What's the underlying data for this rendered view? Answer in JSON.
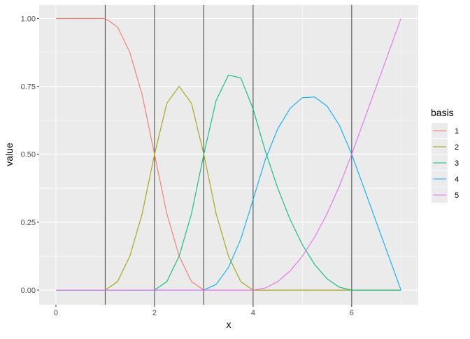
{
  "chart_data": {
    "type": "line",
    "title": "",
    "xlabel": "x",
    "ylabel": "value",
    "xlim": [
      -0.34,
      7.35
    ],
    "ylim": [
      -0.054,
      1.05
    ],
    "x_ticks": [
      0,
      2,
      4,
      6
    ],
    "x_tick_labels": [
      "0",
      "2",
      "4",
      "6"
    ],
    "y_ticks": [
      0,
      0.25,
      0.5,
      0.75,
      1
    ],
    "y_tick_labels": [
      "0.00",
      "0.25",
      "0.50",
      "0.75",
      "1.00"
    ],
    "grid": true,
    "vlines": [
      1,
      2,
      3,
      4,
      6
    ],
    "vline_color": "#4D4D4D",
    "legend": {
      "title": "basis",
      "placement": "right"
    },
    "x": [
      0,
      0.25,
      0.5,
      0.75,
      1,
      1.25,
      1.5,
      1.75,
      2,
      2.25,
      2.5,
      2.75,
      3,
      3.25,
      3.5,
      3.75,
      4,
      4.25,
      4.5,
      4.75,
      5,
      5.25,
      5.5,
      5.75,
      6,
      7
    ],
    "series": [
      {
        "name": "1",
        "color": "#F8766D",
        "values": [
          1,
          1,
          1,
          1,
          1,
          0.96875,
          0.875,
          0.71875,
          0.5,
          0.28125,
          0.125,
          0.03125,
          0,
          0,
          0,
          0,
          0,
          0,
          0,
          0,
          0,
          0,
          0,
          0,
          0,
          0
        ]
      },
      {
        "name": "2",
        "color": "#A3A500",
        "values": [
          0,
          0,
          0,
          0,
          0,
          0.03125,
          0.125,
          0.28125,
          0.5,
          0.6875,
          0.75,
          0.6875,
          0.5,
          0.28125,
          0.125,
          0.03125,
          0,
          0,
          0,
          0,
          0,
          0,
          0,
          0,
          0,
          0
        ]
      },
      {
        "name": "3",
        "color": "#00BF7D",
        "values": [
          0,
          0,
          0,
          0,
          0,
          0,
          0,
          0,
          0,
          0.03125,
          0.125,
          0.28125,
          0.5,
          0.69792,
          0.79167,
          0.78125,
          0.66667,
          0.51042,
          0.375,
          0.26042,
          0.16667,
          0.09375,
          0.04167,
          0.01042,
          0,
          0
        ]
      },
      {
        "name": "4",
        "color": "#00B0F6",
        "values": [
          0,
          0,
          0,
          0,
          0,
          0,
          0,
          0,
          0,
          0,
          0,
          0,
          0,
          0.02083,
          0.08333,
          0.1875,
          0.33333,
          0.48177,
          0.59375,
          0.66927,
          0.70833,
          0.71094,
          0.67708,
          0.60677,
          0.5,
          0
        ]
      },
      {
        "name": "5",
        "color": "#E76BF3",
        "values": [
          0,
          0,
          0,
          0,
          0,
          0,
          0,
          0,
          0,
          0,
          0,
          0,
          0,
          0,
          0,
          0,
          0,
          0.00781,
          0.03125,
          0.07031,
          0.125,
          0.19531,
          0.28125,
          0.38281,
          0.5,
          1
        ]
      }
    ]
  }
}
